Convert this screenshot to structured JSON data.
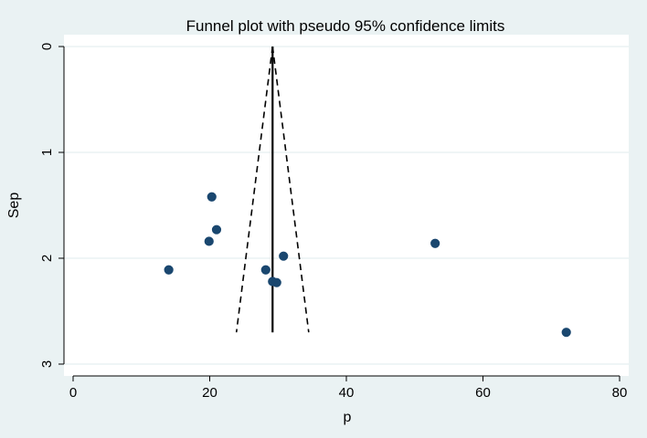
{
  "chart_data": {
    "type": "scatter",
    "title": "Funnel plot with pseudo 95% confidence limits",
    "xlabel": "p",
    "ylabel": "Sep",
    "xlim": [
      0,
      80
    ],
    "ylim": [
      0,
      3
    ],
    "y_reversed": true,
    "xticks": [
      {
        "value": 0,
        "label": "0"
      },
      {
        "value": 20,
        "label": "20"
      },
      {
        "value": 40,
        "label": "40"
      },
      {
        "value": 60,
        "label": "60"
      },
      {
        "value": 80,
        "label": "80"
      }
    ],
    "yticks": [
      {
        "value": 0,
        "label": "0"
      },
      {
        "value": 1,
        "label": "1"
      },
      {
        "value": 2,
        "label": "2"
      },
      {
        "value": 3,
        "label": "3"
      }
    ],
    "grid": true,
    "pooled_estimate": 29.2,
    "funnel_se_max": 2.7,
    "points": [
      {
        "x": 20.3,
        "y": 1.42
      },
      {
        "x": 21.0,
        "y": 1.73
      },
      {
        "x": 19.9,
        "y": 1.84
      },
      {
        "x": 14.0,
        "y": 2.11
      },
      {
        "x": 28.2,
        "y": 2.11
      },
      {
        "x": 30.8,
        "y": 1.98
      },
      {
        "x": 29.2,
        "y": 2.22
      },
      {
        "x": 29.8,
        "y": 2.23
      },
      {
        "x": 53.0,
        "y": 1.86
      },
      {
        "x": 72.2,
        "y": 2.7
      }
    ]
  },
  "colors": {
    "background": "#eaf2f3",
    "plot_area": "#ffffff",
    "grid": "#eaf2f3",
    "marker": "#1a476f",
    "line": "#000000"
  }
}
